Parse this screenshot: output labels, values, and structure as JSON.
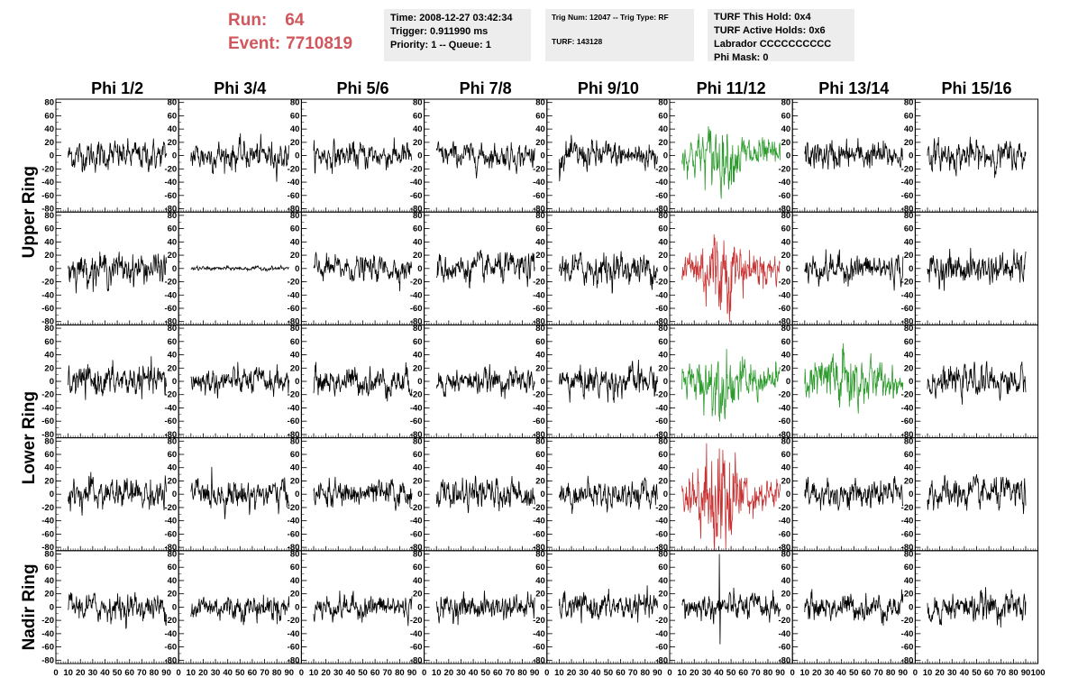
{
  "run_label": "Run:",
  "run_value": "64",
  "event_label": "Event:",
  "event_value": "7710819",
  "info_box_1": {
    "time": "Time: 2008-12-27 03:42:34",
    "trigger": "Trigger: 0.911990 ms",
    "priority": "Priority: 1 -- Queue: 1"
  },
  "info_box_2": {
    "trig": "Trig Num: 12047 -- Trig Type: RF",
    "turf": "TURF: 143128"
  },
  "info_box_3": {
    "hold": "TURF This Hold: 0x4",
    "active": "TURF Active Holds: 0x6",
    "labrador": "Labrador CCCCCCCCCC",
    "phimask": "Phi Mask: 0"
  },
  "colors": {
    "normal": "#000000",
    "green": "#2a9a2a",
    "red": "#c83232",
    "header_text": "#d0575d",
    "box_bg": "#ededed"
  },
  "chart_data": {
    "type": "line",
    "columns": [
      "Phi 1/2",
      "Phi 3/4",
      "Phi 5/6",
      "Phi 7/8",
      "Phi 9/10",
      "Phi 11/12",
      "Phi 13/14",
      "Phi 15/16"
    ],
    "row_groups": [
      {
        "label": "Upper Ring",
        "rows": [
          0,
          1
        ]
      },
      {
        "label": "Lower Ring",
        "rows": [
          2,
          3
        ]
      },
      {
        "label": "Nadir Ring",
        "rows": [
          4
        ]
      }
    ],
    "ylim": [
      -85,
      85
    ],
    "yticks": [
      -80,
      -60,
      -40,
      -20,
      0,
      20,
      40,
      60,
      80
    ],
    "xlim": [
      0,
      100
    ],
    "xticks": [
      0,
      10,
      20,
      30,
      40,
      50,
      60,
      70,
      80,
      90,
      100
    ],
    "signal_x_range": [
      10,
      90
    ],
    "panels": [
      [
        {
          "amp": 14,
          "color": "normal"
        },
        {
          "amp": 14,
          "color": "normal"
        },
        {
          "amp": 13,
          "color": "normal"
        },
        {
          "amp": 12,
          "color": "normal"
        },
        {
          "amp": 14,
          "color": "normal"
        },
        {
          "amp": 15,
          "color": "green",
          "peak": 32
        },
        {
          "amp": 14,
          "color": "normal"
        },
        {
          "amp": 14,
          "color": "normal"
        }
      ],
      [
        {
          "amp": 15,
          "color": "normal"
        },
        {
          "amp": 2,
          "color": "normal"
        },
        {
          "amp": 12,
          "color": "normal"
        },
        {
          "amp": 14,
          "color": "normal"
        },
        {
          "amp": 15,
          "color": "normal"
        },
        {
          "amp": 15,
          "color": "red",
          "peak": 45
        },
        {
          "amp": 14,
          "color": "normal"
        },
        {
          "amp": 15,
          "color": "normal"
        }
      ],
      [
        {
          "amp": 15,
          "color": "normal"
        },
        {
          "amp": 13,
          "color": "normal"
        },
        {
          "amp": 14,
          "color": "normal"
        },
        {
          "amp": 12,
          "color": "normal"
        },
        {
          "amp": 15,
          "color": "normal"
        },
        {
          "amp": 16,
          "color": "green",
          "peak": 32
        },
        {
          "amp": 17,
          "color": "green",
          "peak": 35
        },
        {
          "amp": 14,
          "color": "normal"
        }
      ],
      [
        {
          "amp": 15,
          "color": "normal"
        },
        {
          "amp": 14,
          "color": "normal"
        },
        {
          "amp": 13,
          "color": "normal"
        },
        {
          "amp": 14,
          "color": "normal"
        },
        {
          "amp": 13,
          "color": "normal"
        },
        {
          "amp": 15,
          "color": "red",
          "peak": 62
        },
        {
          "amp": 14,
          "color": "normal"
        },
        {
          "amp": 15,
          "color": "normal"
        }
      ],
      [
        {
          "amp": 13,
          "color": "normal"
        },
        {
          "amp": 13,
          "color": "normal"
        },
        {
          "amp": 12,
          "color": "normal"
        },
        {
          "amp": 12,
          "color": "normal"
        },
        {
          "amp": 13,
          "color": "normal"
        },
        {
          "amp": 13,
          "color": "normal",
          "spike": 80
        },
        {
          "amp": 13,
          "color": "normal"
        },
        {
          "amp": 14,
          "color": "normal"
        }
      ]
    ]
  }
}
